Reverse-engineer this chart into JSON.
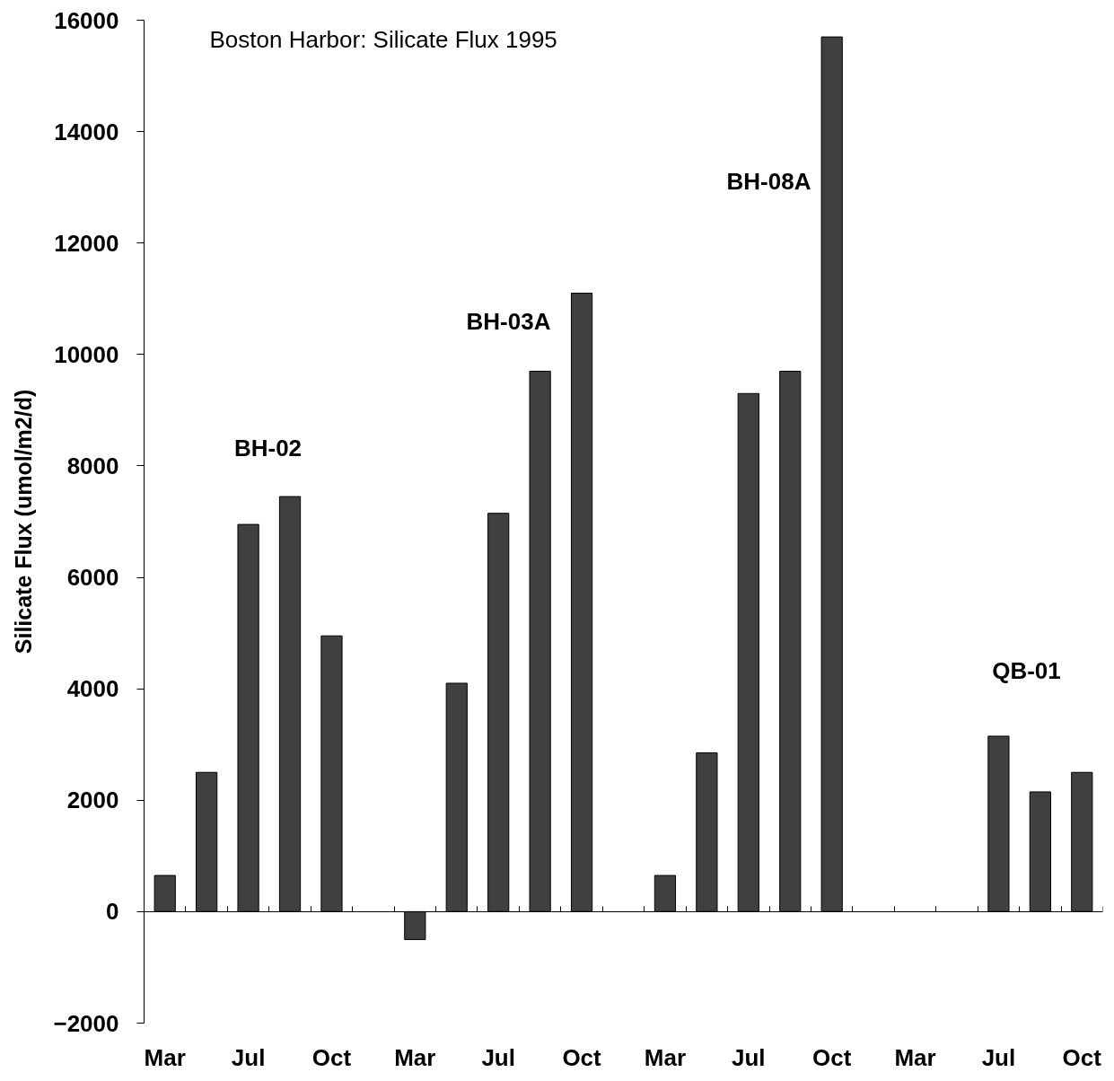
{
  "chart_data": {
    "type": "bar",
    "title": "Boston Harbor: Silicate Flux 1995",
    "ylabel": "Silicate Flux (umol/m2/d)",
    "categories": [
      "Mar",
      null,
      "Jul",
      null,
      "Oct",
      null,
      "Mar",
      null,
      "Jul",
      null,
      "Oct",
      null,
      "Mar",
      null,
      "Jul",
      null,
      "Oct",
      null,
      "Mar",
      null,
      "Jul",
      null,
      "Oct"
    ],
    "values": [
      650,
      2500,
      6950,
      7450,
      4950,
      null,
      -500,
      4100,
      7150,
      9700,
      11100,
      null,
      650,
      2850,
      9300,
      9700,
      15700,
      null,
      null,
      null,
      3150,
      2150,
      2500
    ],
    "color": "#404040",
    "ylim": [
      -2000,
      16000
    ],
    "yticks": [
      -2000,
      0,
      2000,
      4000,
      6000,
      8000,
      10000,
      12000,
      14000,
      16000
    ],
    "annotations": [
      "BH-02",
      "BH-03A",
      "BH-08A",
      "QB-01"
    ]
  }
}
